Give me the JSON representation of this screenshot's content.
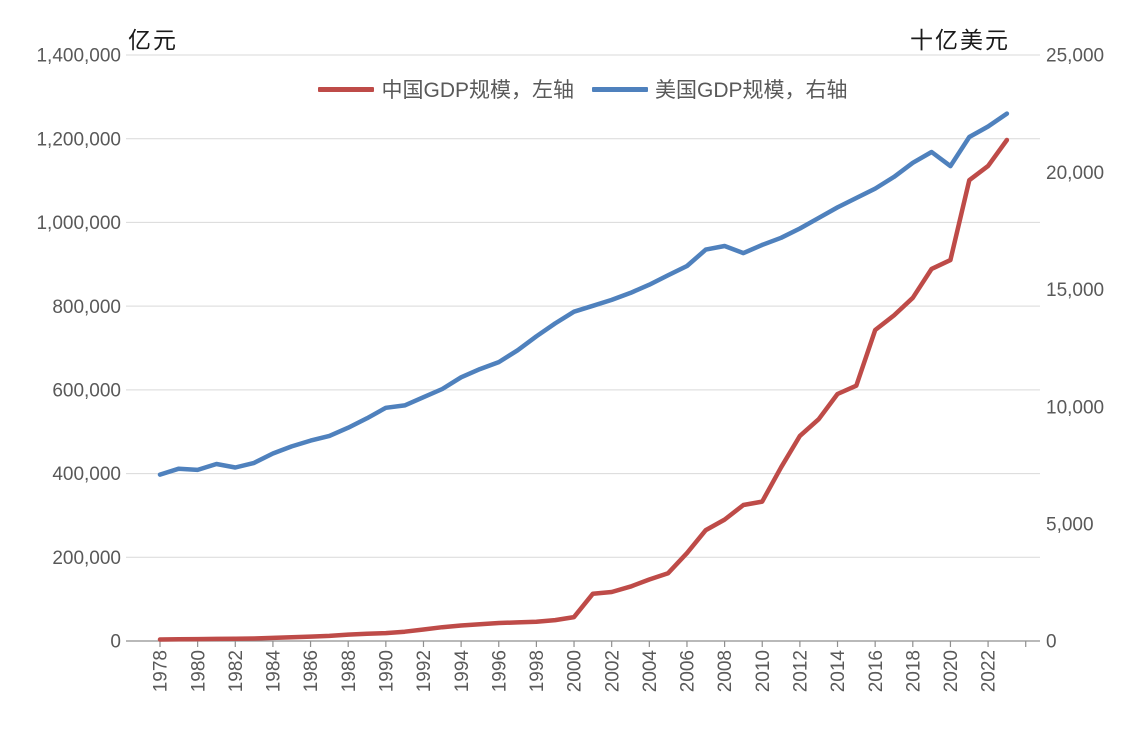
{
  "legend": [
    {
      "label": "中国GDP规模，左轴",
      "color": "#BE4B48"
    },
    {
      "label": "美国GDP规模，右轴",
      "color": "#4F81BD"
    }
  ],
  "chart_data": {
    "type": "line",
    "x": [
      1978,
      1979,
      1980,
      1981,
      1982,
      1983,
      1984,
      1985,
      1986,
      1987,
      1988,
      1989,
      1990,
      1991,
      1992,
      1993,
      1994,
      1995,
      1996,
      1997,
      1998,
      1999,
      2000,
      2001,
      2002,
      2003,
      2004,
      2005,
      2006,
      2007,
      2008,
      2009,
      2010,
      2011,
      2012,
      2013,
      2014,
      2015,
      2016,
      2017,
      2018,
      2019,
      2020,
      2021,
      2022,
      2023
    ],
    "series": [
      {
        "name": "中国GDP规模，左轴",
        "axis": "left",
        "unit": "亿元",
        "color": "#BE4B48",
        "values": [
          3700,
          4100,
          4600,
          4900,
          5400,
          6000,
          7300,
          9100,
          10400,
          12200,
          15200,
          17200,
          18900,
          22100,
          27500,
          33000,
          37000,
          40000,
          43000,
          44500,
          46000,
          50000,
          57000,
          113000,
          117000,
          130000,
          147000,
          162000,
          210000,
          265000,
          290000,
          325000,
          333000,
          415000,
          490000,
          530000,
          590000,
          610000,
          743000,
          778000,
          820000,
          889000,
          910000,
          1101000,
          1135000,
          1197000
        ]
      },
      {
        "name": "美国GDP规模，右轴",
        "axis": "right",
        "unit": "十亿美元",
        "color": "#4F81BD",
        "values": [
          7100,
          7350,
          7300,
          7550,
          7400,
          7600,
          8000,
          8300,
          8550,
          8750,
          9100,
          9500,
          9950,
          10050,
          10400,
          10750,
          11250,
          11600,
          11900,
          12400,
          13000,
          13550,
          14050,
          14300,
          14550,
          14850,
          15200,
          15600,
          16000,
          16700,
          16850,
          16550,
          16900,
          17200,
          17600,
          18050,
          18500,
          18900,
          19300,
          19800,
          20400,
          20860,
          20260,
          21500,
          21950,
          22500
        ]
      }
    ],
    "left_axis": {
      "label": "亿元",
      "min": 0,
      "max": 1400000,
      "step": 200000,
      "tick_values": [
        0,
        200000,
        400000,
        600000,
        800000,
        1000000,
        1200000,
        1400000
      ],
      "tick_labels": [
        "0",
        "200,000",
        "400,000",
        "600,000",
        "800,000",
        "1,000,000",
        "1,200,000",
        "1,400,000"
      ]
    },
    "right_axis": {
      "label": "十亿美元",
      "min": 0,
      "max": 25000,
      "step": 5000,
      "tick_values": [
        0,
        5000,
        10000,
        15000,
        20000,
        25000
      ],
      "tick_labels": [
        "0",
        "5,000",
        "10,000",
        "15,000",
        "20,000",
        "25,000"
      ]
    },
    "x_ticks": [
      {
        "year": 1978,
        "label": "1978"
      },
      {
        "year": 1980,
        "label": "1980"
      },
      {
        "year": 1982,
        "label": "1982"
      },
      {
        "year": 1984,
        "label": "1984"
      },
      {
        "year": 1986,
        "label": "1986"
      },
      {
        "year": 1988,
        "label": "1988"
      },
      {
        "year": 1990,
        "label": "1990"
      },
      {
        "year": 1992,
        "label": "1992"
      },
      {
        "year": 1994,
        "label": "1994"
      },
      {
        "year": 1996,
        "label": "1996"
      },
      {
        "year": 1998,
        "label": "1998"
      },
      {
        "year": 2000,
        "label": "2000"
      },
      {
        "year": 2002,
        "label": "2002"
      },
      {
        "year": 2004,
        "label": "2004"
      },
      {
        "year": 2006,
        "label": "2006"
      },
      {
        "year": 2008,
        "label": "2008"
      },
      {
        "year": 2010,
        "label": "2010"
      },
      {
        "year": 2012,
        "label": "2012"
      },
      {
        "year": 2014,
        "label": "2014"
      },
      {
        "year": 2016,
        "label": "2016"
      },
      {
        "year": 2018,
        "label": "2018"
      },
      {
        "year": 2020,
        "label": "2020"
      },
      {
        "year": 2022,
        "label": "2022"
      },
      {
        "year": 2024,
        "label": ""
      }
    ],
    "grid": true,
    "legend_position": "top",
    "colors": {
      "background": "#ffffff",
      "gridline": "#d9d9d9",
      "axis_line": "#8f8f8f",
      "tick_text": "#595959",
      "axis_title_text": "#1a1a1a"
    }
  }
}
